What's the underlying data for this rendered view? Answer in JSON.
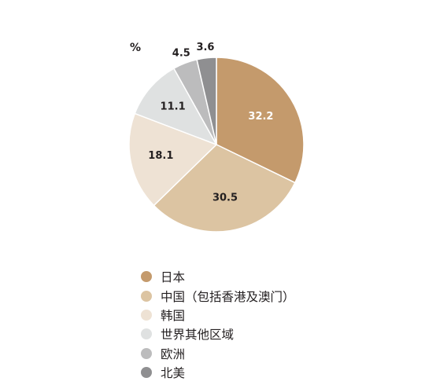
{
  "chart_data": {
    "type": "pie",
    "unit_label": "%",
    "slices": [
      {
        "label": "日本",
        "value": 32.2,
        "color": "#c49a6c",
        "label_color": "#ffffff"
      },
      {
        "label": "中国（包括香港及澳门）",
        "value": 30.5,
        "color": "#dcc4a2",
        "label_color": "#231f20"
      },
      {
        "label": "韩国",
        "value": 18.1,
        "color": "#eee2d4",
        "label_color": "#231f20"
      },
      {
        "label": "世界其他区域",
        "value": 11.1,
        "color": "#dfe1e1",
        "label_color": "#231f20"
      },
      {
        "label": "欧洲",
        "value": 4.5,
        "color": "#bcbcbd",
        "label_color": "#231f20"
      },
      {
        "label": "北美",
        "value": 3.6,
        "color": "#8f8f91",
        "label_color": "#231f20"
      }
    ],
    "start_angle": "12 o'clock",
    "direction": "clockwise"
  }
}
